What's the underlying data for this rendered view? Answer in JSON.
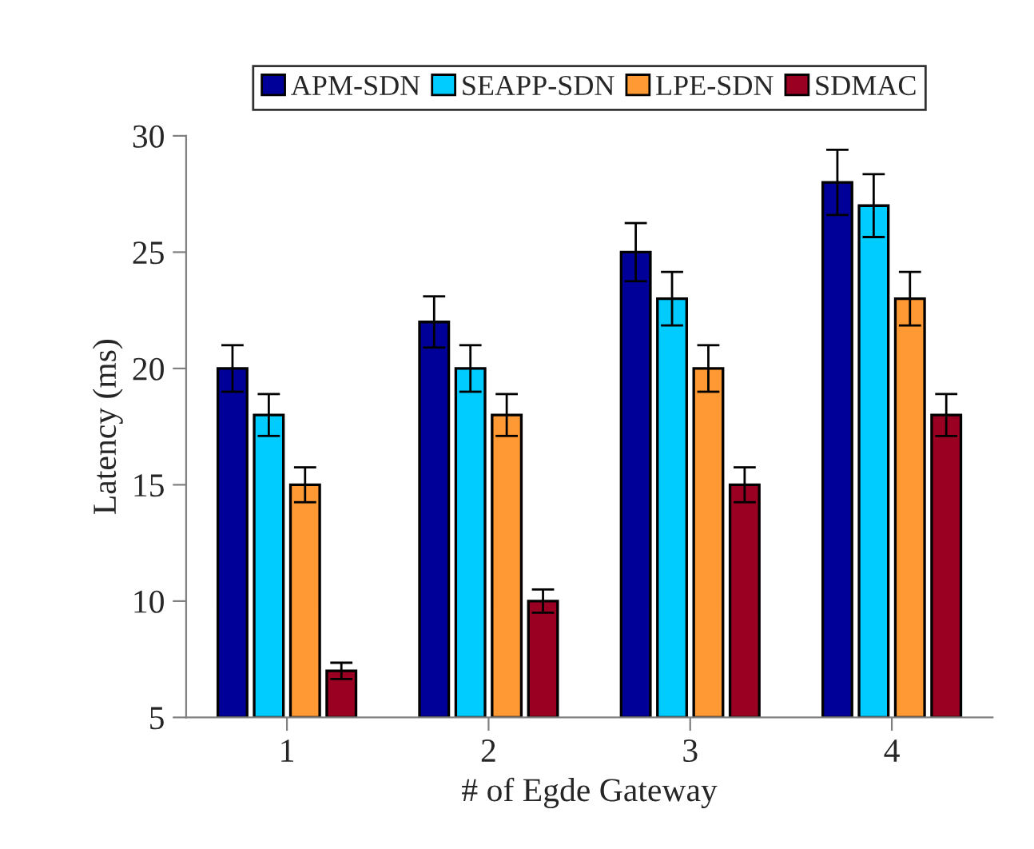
{
  "chart_data": {
    "type": "bar",
    "xlabel": "# of Egde Gateway",
    "ylabel": "Latency (ms)",
    "categories": [
      "1",
      "2",
      "3",
      "4"
    ],
    "series": [
      {
        "name": "APM-SDN",
        "color": "#000099",
        "values": [
          20,
          22,
          25,
          28
        ],
        "errors": [
          1,
          1.1,
          1.25,
          1.4
        ]
      },
      {
        "name": "SEAPP-SDN",
        "color": "#00ccff",
        "values": [
          18,
          20,
          23,
          27
        ],
        "errors": [
          0.9,
          1,
          1.15,
          1.35
        ]
      },
      {
        "name": "LPE-SDN",
        "color": "#ff9933",
        "values": [
          15,
          18,
          20,
          23
        ],
        "errors": [
          0.75,
          0.9,
          1,
          1.15
        ]
      },
      {
        "name": "SDMAC",
        "color": "#990022",
        "values": [
          7,
          10,
          15,
          18
        ],
        "errors": [
          0.35,
          0.5,
          0.75,
          0.9
        ]
      }
    ],
    "ylim": [
      5,
      30
    ],
    "yticks": [
      5,
      10,
      15,
      20,
      25,
      30
    ],
    "grid": false,
    "legend": "top"
  }
}
